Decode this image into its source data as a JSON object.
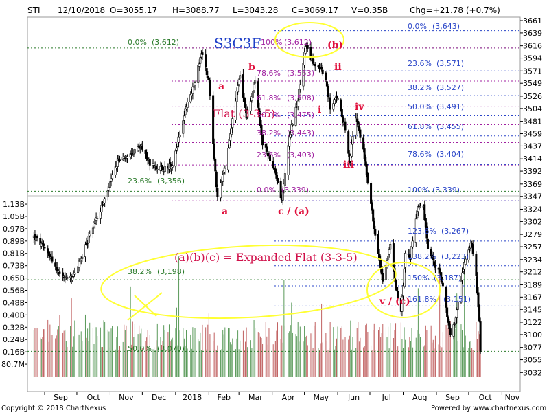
{
  "header": {
    "symbol": "STI",
    "date": "12/10/2018",
    "open": "O=3055.17",
    "high": "H=3088.77",
    "low": "L=3043.28",
    "close": "C=3069.17",
    "volume": "V=0.35B",
    "change": "Chg=+21.78 (+0.7%)"
  },
  "footer": {
    "copyright": "Copyright © 2018 ChartNexus",
    "powered": "Powered by www.chartnexus.com"
  },
  "chart_data": {
    "type": "candlestick",
    "title": "STI",
    "price_axis": {
      "ticks": [
        3032,
        3055,
        3077,
        3100,
        3122,
        3145,
        3167,
        3189,
        3212,
        3234,
        3257,
        3279,
        3302,
        3324,
        3347,
        3369,
        3392,
        3414,
        3437,
        3459,
        3481,
        3504,
        3526,
        3549,
        3571,
        3594,
        3616,
        3639,
        3661
      ],
      "range": [
        3025,
        3661
      ]
    },
    "volume_axis": {
      "ticks": [
        "80.7M",
        "0.16B",
        "0.24B",
        "0.32B",
        "0.40B",
        "0.48B",
        "0.56B",
        "0.65B",
        "0.73B",
        "0.81B",
        "0.89B",
        "0.97B",
        "1.05B",
        "1.13B"
      ],
      "max": 1.13
    },
    "months": [
      "Sep",
      "Oct",
      "Nov",
      "Dec",
      "2018",
      "Feb",
      "Mar",
      "Apr",
      "May",
      "Jun",
      "Jul",
      "Aug",
      "Sep",
      "Oct",
      "Nov"
    ],
    "price_path": [
      [
        "2017-08-22",
        3275
      ],
      [
        "2017-09-05",
        3245
      ],
      [
        "2017-09-15",
        3205
      ],
      [
        "2017-09-26",
        3200
      ],
      [
        "2017-10-06",
        3240
      ],
      [
        "2017-10-16",
        3295
      ],
      [
        "2017-10-27",
        3340
      ],
      [
        "2017-11-08",
        3410
      ],
      [
        "2017-11-20",
        3425
      ],
      [
        "2017-11-30",
        3435
      ],
      [
        "2017-12-08",
        3405
      ],
      [
        "2017-12-20",
        3395
      ],
      [
        "2017-12-29",
        3405
      ],
      [
        "2018-01-10",
        3500
      ],
      [
        "2018-01-18",
        3545
      ],
      [
        "2018-01-25",
        3605
      ],
      [
        "2018-02-01",
        3555
      ],
      [
        "2018-02-06",
        3415
      ],
      [
        "2018-02-09",
        3345
      ],
      [
        "2018-02-15",
        3390
      ],
      [
        "2018-02-26",
        3520
      ],
      [
        "2018-03-02",
        3565
      ],
      [
        "2018-03-08",
        3490
      ],
      [
        "2018-03-16",
        3550
      ],
      [
        "2018-03-23",
        3440
      ],
      [
        "2018-03-29",
        3420
      ],
      [
        "2018-04-04",
        3385
      ],
      [
        "2018-04-10",
        3340
      ],
      [
        "2018-04-17",
        3455
      ],
      [
        "2018-04-25",
        3520
      ],
      [
        "2018-05-02",
        3615
      ],
      [
        "2018-05-08",
        3590
      ],
      [
        "2018-05-14",
        3580
      ],
      [
        "2018-05-21",
        3555
      ],
      [
        "2018-05-25",
        3505
      ],
      [
        "2018-06-01",
        3525
      ],
      [
        "2018-06-07",
        3475
      ],
      [
        "2018-06-12",
        3410
      ],
      [
        "2018-06-18",
        3490
      ],
      [
        "2018-06-25",
        3430
      ],
      [
        "2018-07-02",
        3335
      ],
      [
        "2018-07-06",
        3275
      ],
      [
        "2018-07-13",
        3200
      ],
      [
        "2018-07-20",
        3260
      ],
      [
        "2018-07-25",
        3185
      ],
      [
        "2018-07-30",
        3140
      ],
      [
        "2018-08-03",
        3245
      ],
      [
        "2018-08-08",
        3240
      ],
      [
        "2018-08-14",
        3325
      ],
      [
        "2018-08-20",
        3325
      ],
      [
        "2018-08-24",
        3255
      ],
      [
        "2018-08-30",
        3225
      ],
      [
        "2018-09-04",
        3215
      ],
      [
        "2018-09-10",
        3150
      ],
      [
        "2018-09-14",
        3095
      ],
      [
        "2018-09-19",
        3125
      ],
      [
        "2018-09-25",
        3215
      ],
      [
        "2018-10-01",
        3250
      ],
      [
        "2018-10-04",
        3265
      ],
      [
        "2018-10-08",
        3205
      ],
      [
        "2018-10-11",
        3120
      ],
      [
        "2018-10-12",
        3069
      ]
    ],
    "fib_levels": [
      {
        "group": "green",
        "label": "0.0%",
        "value": "(3,612)"
      },
      {
        "group": "green",
        "label": "23.6%",
        "value": "(3,356)"
      },
      {
        "group": "green",
        "label": "38.2%",
        "value": "(3,198)"
      },
      {
        "group": "green",
        "label": "50.0%",
        "value": "(3,070)"
      },
      {
        "group": "purple",
        "label": "100%",
        "value": "(3,612)"
      },
      {
        "group": "purple",
        "label": "78.6%",
        "value": "(3,553)"
      },
      {
        "group": "purple",
        "label": "61.8%",
        "value": "(3,508)"
      },
      {
        "group": "purple",
        "label": "50.0%",
        "value": "(3,475)"
      },
      {
        "group": "purple",
        "label": "38.2%",
        "value": "(3,443)"
      },
      {
        "group": "purple",
        "label": "23.6%",
        "value": "(3,403)"
      },
      {
        "group": "purple",
        "label": "0.0%",
        "value": "(3,339)"
      },
      {
        "group": "blue",
        "label": "0.0%",
        "value": "(3,643)"
      },
      {
        "group": "blue",
        "label": "23.6%",
        "value": "(3,571)"
      },
      {
        "group": "blue",
        "label": "38.2%",
        "value": "(3,527)"
      },
      {
        "group": "blue",
        "label": "50.0%",
        "value": "(3,491)"
      },
      {
        "group": "blue",
        "label": "61.8%",
        "value": "(3,455)"
      },
      {
        "group": "blue",
        "label": "78.6%",
        "value": "(3,404)"
      },
      {
        "group": "blue",
        "label": "100%",
        "value": "(3,339)"
      },
      {
        "group": "blue",
        "label": "123.6%",
        "value": "(3,267)"
      },
      {
        "group": "blue",
        "label": "138.2%",
        "value": "(3,223)"
      },
      {
        "group": "blue",
        "label": "150%",
        "value": "(3,187)"
      },
      {
        "group": "blue",
        "label": "161.8%",
        "value": "(3,151)"
      }
    ],
    "annotations": {
      "wave_a": "a",
      "wave_b": "b",
      "wave_c": "c / (a)",
      "wave_b_paren": "(b)",
      "wave_i": "i",
      "wave_ii": "ii",
      "wave_iii": "iii",
      "wave_iv": "iv",
      "wave_v": "v / (c)",
      "flat_note": "Flat (3-3-5)",
      "expanded_note": "(a)(b)(c) = Expanded Flat (3-3-5)",
      "s3c": "S3C3F"
    },
    "colors": {
      "up": "#ffffff",
      "down": "#000000",
      "volume_up": "#5a9a5a",
      "volume_down": "#c06060",
      "fib_green": "#2a7a2a",
      "fib_purple": "#a020a0",
      "fib_blue": "#2a45c8",
      "annotation": "#e0103c",
      "highlight": "#ffff33"
    }
  }
}
